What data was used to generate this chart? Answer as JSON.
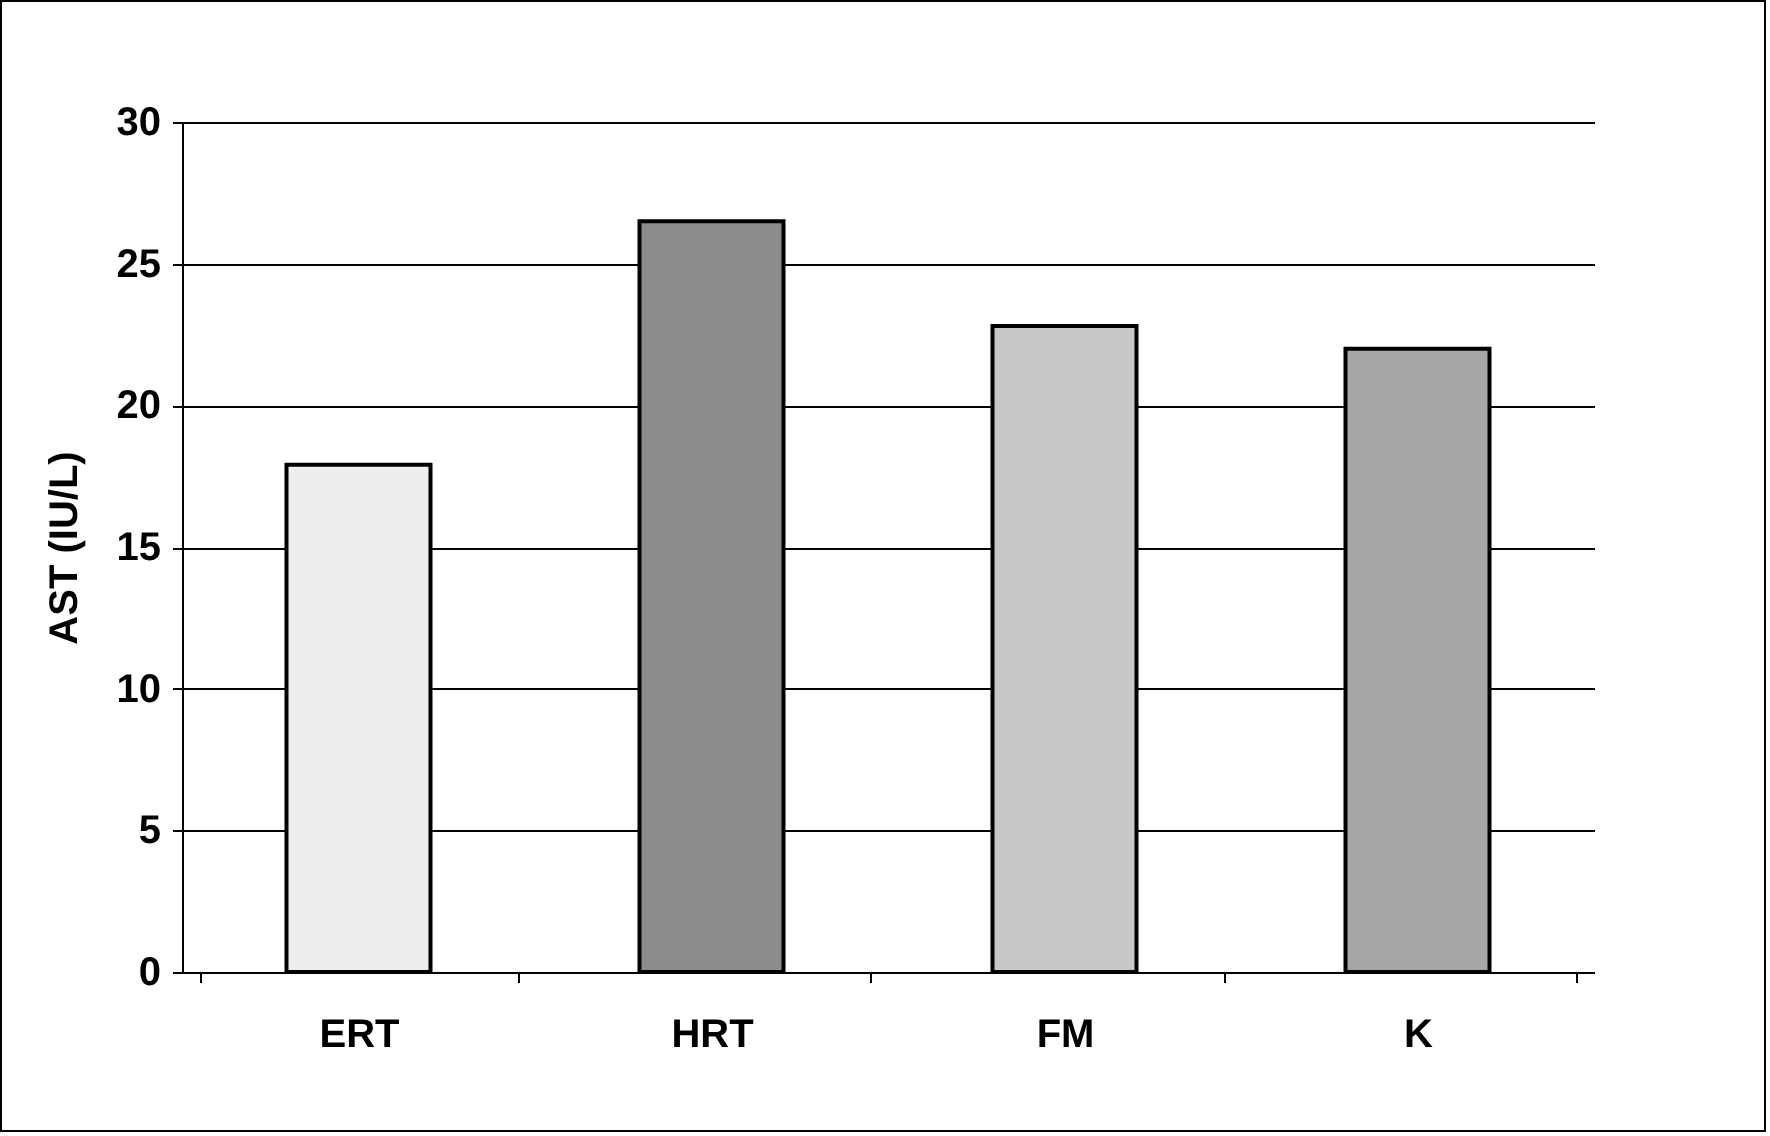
{
  "chart_data": {
    "type": "bar",
    "ylabel": "AST (IU/L)",
    "categories": [
      "ERT",
      "HRT",
      "FM",
      "K"
    ],
    "values": [
      17.9,
      26.5,
      22.8,
      22.0
    ],
    "colors": [
      "#eeeeee",
      "#8c8c8c",
      "#c8c8c8",
      "#a6a6a6"
    ],
    "ylim": [
      0,
      30
    ],
    "yticks": [
      0,
      5,
      10,
      15,
      20,
      25,
      30
    ],
    "grid": "y"
  }
}
